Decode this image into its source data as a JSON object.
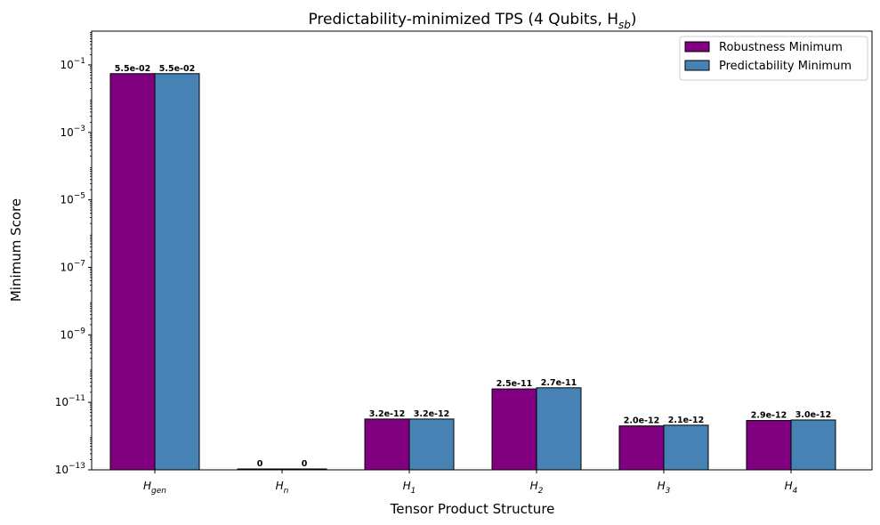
{
  "chart_data": {
    "type": "bar",
    "title": "Predictability-minimized TPS (4 Qubits, H",
    "title_sub": "sb",
    "title_end": ")",
    "xlabel": "Tensor Product Structure",
    "ylabel": "Minimum Score",
    "yscale": "log",
    "ylim": [
      1e-13,
      1
    ],
    "yticks": [
      {
        "base": "10",
        "exp": "−13",
        "value": 1e-13
      },
      {
        "base": "10",
        "exp": "−11",
        "value": 1e-11
      },
      {
        "base": "10",
        "exp": "−9",
        "value": 1e-09
      },
      {
        "base": "10",
        "exp": "−7",
        "value": 1e-07
      },
      {
        "base": "10",
        "exp": "−5",
        "value": 1e-05
      },
      {
        "base": "10",
        "exp": "−3",
        "value": 0.001
      },
      {
        "base": "10",
        "exp": "−1",
        "value": 0.1
      }
    ],
    "categories": [
      {
        "main": "H",
        "sub": "gen"
      },
      {
        "main": "H",
        "sub": "n"
      },
      {
        "main": "H",
        "sub": "1"
      },
      {
        "main": "H",
        "sub": "2"
      },
      {
        "main": "H",
        "sub": "3"
      },
      {
        "main": "H",
        "sub": "4"
      }
    ],
    "series": [
      {
        "name": "Robustness Minimum",
        "color": "#800080",
        "values": [
          0.055,
          0,
          3.2e-12,
          2.5e-11,
          2e-12,
          2.9e-12
        ],
        "labels": [
          "5.5e-02",
          "0",
          "3.2e-12",
          "2.5e-11",
          "2.0e-12",
          "2.9e-12"
        ]
      },
      {
        "name": "Predictability Minimum",
        "color": "#4682b4",
        "values": [
          0.055,
          0,
          3.2e-12,
          2.7e-11,
          2.1e-12,
          3e-12
        ],
        "labels": [
          "5.5e-02",
          "0",
          "3.2e-12",
          "2.7e-11",
          "2.1e-12",
          "3.0e-12"
        ]
      }
    ],
    "legend_position": "top-right",
    "grid": false
  }
}
